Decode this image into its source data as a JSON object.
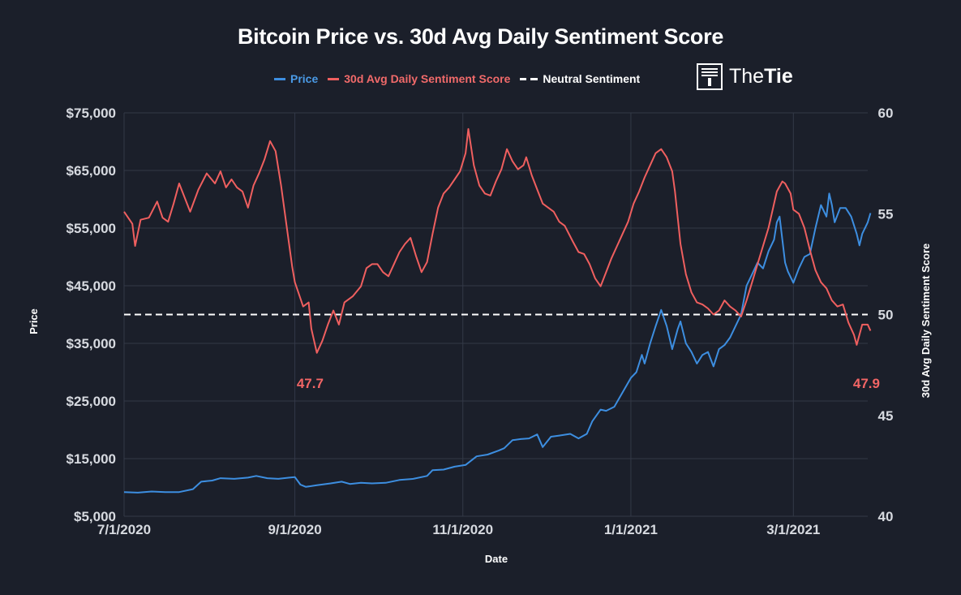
{
  "chart_data": {
    "type": "line",
    "title": "Bitcoin Price vs. 30d Avg Daily Sentiment Score",
    "xlabel": "Date",
    "ylabel_left": "Price",
    "ylabel_right": "30d Avg Daily Sentiment Score",
    "x_ticks": [
      {
        "label": "7/1/2020",
        "day": 0
      },
      {
        "label": "9/1/2020",
        "day": 62
      },
      {
        "label": "11/1/2020",
        "day": 123
      },
      {
        "label": "1/1/2021",
        "day": 184
      },
      {
        "label": "3/1/2021",
        "day": 243
      }
    ],
    "x_range_days": [
      0,
      270
    ],
    "left_axis": {
      "range": [
        5000,
        75000
      ],
      "ticks": [
        "$75,000",
        "$65,000",
        "$55,000",
        "$45,000",
        "$35,000",
        "$25,000",
        "$15,000",
        "$5,000"
      ],
      "tick_values": [
        75000,
        65000,
        55000,
        45000,
        35000,
        25000,
        15000,
        5000
      ]
    },
    "right_axis": {
      "range": [
        40,
        60
      ],
      "ticks": [
        "60",
        "55",
        "50",
        "45",
        "40"
      ],
      "tick_values": [
        60,
        55,
        50,
        45,
        40
      ]
    },
    "grid": true,
    "legend_position": "top",
    "neutral_sentiment": 50,
    "series": [
      {
        "name": "Price",
        "axis": "left",
        "color": "#3d8ee0",
        "points": [
          [
            0,
            9200
          ],
          [
            5,
            9100
          ],
          [
            10,
            9300
          ],
          [
            15,
            9200
          ],
          [
            20,
            9200
          ],
          [
            25,
            9700
          ],
          [
            28,
            11000
          ],
          [
            32,
            11200
          ],
          [
            35,
            11600
          ],
          [
            40,
            11500
          ],
          [
            45,
            11700
          ],
          [
            48,
            12000
          ],
          [
            52,
            11600
          ],
          [
            56,
            11500
          ],
          [
            60,
            11700
          ],
          [
            62,
            11800
          ],
          [
            64,
            10500
          ],
          [
            66,
            10100
          ],
          [
            70,
            10400
          ],
          [
            75,
            10700
          ],
          [
            79,
            11000
          ],
          [
            82,
            10600
          ],
          [
            86,
            10800
          ],
          [
            90,
            10700
          ],
          [
            95,
            10800
          ],
          [
            100,
            11300
          ],
          [
            105,
            11500
          ],
          [
            110,
            12000
          ],
          [
            112,
            13000
          ],
          [
            116,
            13100
          ],
          [
            120,
            13600
          ],
          [
            124,
            13900
          ],
          [
            128,
            15400
          ],
          [
            132,
            15700
          ],
          [
            136,
            16400
          ],
          [
            138,
            16800
          ],
          [
            141,
            18200
          ],
          [
            144,
            18400
          ],
          [
            147,
            18500
          ],
          [
            150,
            19200
          ],
          [
            152,
            17000
          ],
          [
            155,
            18800
          ],
          [
            158,
            19000
          ],
          [
            162,
            19300
          ],
          [
            165,
            18500
          ],
          [
            168,
            19300
          ],
          [
            170,
            21500
          ],
          [
            173,
            23500
          ],
          [
            175,
            23300
          ],
          [
            178,
            24000
          ],
          [
            181,
            26500
          ],
          [
            184,
            29000
          ],
          [
            186,
            30000
          ],
          [
            188,
            33000
          ],
          [
            189,
            31500
          ],
          [
            191,
            35000
          ],
          [
            193,
            38000
          ],
          [
            195,
            40800
          ],
          [
            197,
            38000
          ],
          [
            199,
            34000
          ],
          [
            201,
            37500
          ],
          [
            202,
            38800
          ],
          [
            204,
            35000
          ],
          [
            206,
            33500
          ],
          [
            208,
            31500
          ],
          [
            210,
            33000
          ],
          [
            212,
            33500
          ],
          [
            214,
            31000
          ],
          [
            216,
            34000
          ],
          [
            218,
            34700
          ],
          [
            220,
            36000
          ],
          [
            222,
            38000
          ],
          [
            224,
            40000
          ],
          [
            226,
            45000
          ],
          [
            228,
            47000
          ],
          [
            230,
            49000
          ],
          [
            232,
            48000
          ],
          [
            234,
            51000
          ],
          [
            236,
            53000
          ],
          [
            237,
            56000
          ],
          [
            238,
            57000
          ],
          [
            239,
            53000
          ],
          [
            240,
            49000
          ],
          [
            241,
            47500
          ],
          [
            243,
            45500
          ],
          [
            245,
            48000
          ],
          [
            247,
            50000
          ],
          [
            249,
            50500
          ],
          [
            251,
            55000
          ],
          [
            253,
            59000
          ],
          [
            255,
            57000
          ],
          [
            256,
            61000
          ],
          [
            257,
            59000
          ],
          [
            258,
            56000
          ],
          [
            260,
            58500
          ],
          [
            262,
            58500
          ],
          [
            264,
            57000
          ],
          [
            266,
            54000
          ],
          [
            267,
            52000
          ],
          [
            268,
            54000
          ],
          [
            270,
            56000
          ],
          [
            271,
            57600
          ]
        ]
      },
      {
        "name": "30d Avg Daily Sentiment Score",
        "axis": "right",
        "color": "#ef5f5f",
        "points": [
          [
            0,
            55.1
          ],
          [
            3,
            54.5
          ],
          [
            4,
            53.4
          ],
          [
            6,
            54.7
          ],
          [
            9,
            54.8
          ],
          [
            12,
            55.6
          ],
          [
            14,
            54.8
          ],
          [
            16,
            54.6
          ],
          [
            18,
            55.5
          ],
          [
            20,
            56.5
          ],
          [
            22,
            55.8
          ],
          [
            24,
            55.1
          ],
          [
            27,
            56.2
          ],
          [
            30,
            57.0
          ],
          [
            33,
            56.5
          ],
          [
            35,
            57.1
          ],
          [
            37,
            56.3
          ],
          [
            39,
            56.7
          ],
          [
            41,
            56.3
          ],
          [
            43,
            56.1
          ],
          [
            45,
            55.3
          ],
          [
            47,
            56.4
          ],
          [
            49,
            57.0
          ],
          [
            51,
            57.7
          ],
          [
            53,
            58.6
          ],
          [
            55,
            58.1
          ],
          [
            57,
            56.4
          ],
          [
            59,
            54.4
          ],
          [
            61,
            52.4
          ],
          [
            62,
            51.6
          ],
          [
            64,
            50.8
          ],
          [
            65,
            50.4
          ],
          [
            67,
            50.6
          ],
          [
            68,
            49.3
          ],
          [
            70,
            48.1
          ],
          [
            72,
            48.7
          ],
          [
            74,
            49.5
          ],
          [
            76,
            50.2
          ],
          [
            78,
            49.5
          ],
          [
            80,
            50.6
          ],
          [
            83,
            50.9
          ],
          [
            86,
            51.4
          ],
          [
            88,
            52.3
          ],
          [
            90,
            52.5
          ],
          [
            92,
            52.5
          ],
          [
            94,
            52.1
          ],
          [
            96,
            51.9
          ],
          [
            98,
            52.5
          ],
          [
            100,
            53.1
          ],
          [
            102,
            53.5
          ],
          [
            104,
            53.8
          ],
          [
            106,
            52.9
          ],
          [
            108,
            52.1
          ],
          [
            110,
            52.6
          ],
          [
            112,
            54.0
          ],
          [
            114,
            55.3
          ],
          [
            116,
            56.0
          ],
          [
            118,
            56.3
          ],
          [
            120,
            56.7
          ],
          [
            122,
            57.1
          ],
          [
            124,
            58.0
          ],
          [
            125,
            59.2
          ],
          [
            127,
            57.4
          ],
          [
            129,
            56.4
          ],
          [
            131,
            56.0
          ],
          [
            133,
            55.9
          ],
          [
            135,
            56.6
          ],
          [
            137,
            57.2
          ],
          [
            139,
            58.2
          ],
          [
            141,
            57.6
          ],
          [
            143,
            57.2
          ],
          [
            145,
            57.4
          ],
          [
            146,
            57.8
          ],
          [
            148,
            56.9
          ],
          [
            150,
            56.2
          ],
          [
            152,
            55.5
          ],
          [
            154,
            55.3
          ],
          [
            156,
            55.1
          ],
          [
            158,
            54.6
          ],
          [
            160,
            54.4
          ],
          [
            163,
            53.6
          ],
          [
            165,
            53.1
          ],
          [
            167,
            53.0
          ],
          [
            169,
            52.5
          ],
          [
            171,
            51.8
          ],
          [
            173,
            51.4
          ],
          [
            175,
            52.1
          ],
          [
            177,
            52.8
          ],
          [
            179,
            53.4
          ],
          [
            181,
            54.0
          ],
          [
            183,
            54.6
          ],
          [
            185,
            55.5
          ],
          [
            187,
            56.1
          ],
          [
            189,
            56.8
          ],
          [
            191,
            57.4
          ],
          [
            193,
            58.0
          ],
          [
            195,
            58.2
          ],
          [
            197,
            57.8
          ],
          [
            199,
            57.1
          ],
          [
            200,
            56.1
          ],
          [
            202,
            53.5
          ],
          [
            204,
            52.0
          ],
          [
            206,
            51.1
          ],
          [
            208,
            50.6
          ],
          [
            210,
            50.5
          ],
          [
            212,
            50.3
          ],
          [
            214,
            50.0
          ],
          [
            216,
            50.2
          ],
          [
            218,
            50.7
          ],
          [
            220,
            50.4
          ],
          [
            222,
            50.2
          ],
          [
            224,
            49.9
          ],
          [
            226,
            50.7
          ],
          [
            228,
            51.6
          ],
          [
            230,
            52.5
          ],
          [
            232,
            53.4
          ],
          [
            234,
            54.3
          ],
          [
            236,
            55.5
          ],
          [
            237,
            56.1
          ],
          [
            239,
            56.6
          ],
          [
            240,
            56.5
          ],
          [
            242,
            56.0
          ],
          [
            243,
            55.2
          ],
          [
            245,
            55.0
          ],
          [
            247,
            54.3
          ],
          [
            249,
            53.2
          ],
          [
            251,
            52.2
          ],
          [
            253,
            51.6
          ],
          [
            255,
            51.3
          ],
          [
            257,
            50.7
          ],
          [
            259,
            50.4
          ],
          [
            261,
            50.5
          ],
          [
            263,
            49.6
          ],
          [
            265,
            49.0
          ],
          [
            266,
            48.5
          ],
          [
            268,
            49.5
          ],
          [
            270,
            49.5
          ],
          [
            271,
            49.2
          ]
        ]
      },
      {
        "name": "Neutral Sentiment",
        "axis": "right",
        "color": "#ffffff",
        "style": "dashed",
        "value": 50
      }
    ],
    "annotations": [
      {
        "text": "47.7",
        "day": 64,
        "series": "30d Avg Daily Sentiment Score"
      },
      {
        "text": "47.9",
        "day": 266,
        "series": "30d Avg Daily Sentiment Score"
      }
    ]
  },
  "legend": {
    "price_label": "Price",
    "sentiment_label": "30d Avg Daily Sentiment Score",
    "neutral_label": "Neutral Sentiment"
  },
  "brand": {
    "part1": "The",
    "part2": "Tie"
  }
}
